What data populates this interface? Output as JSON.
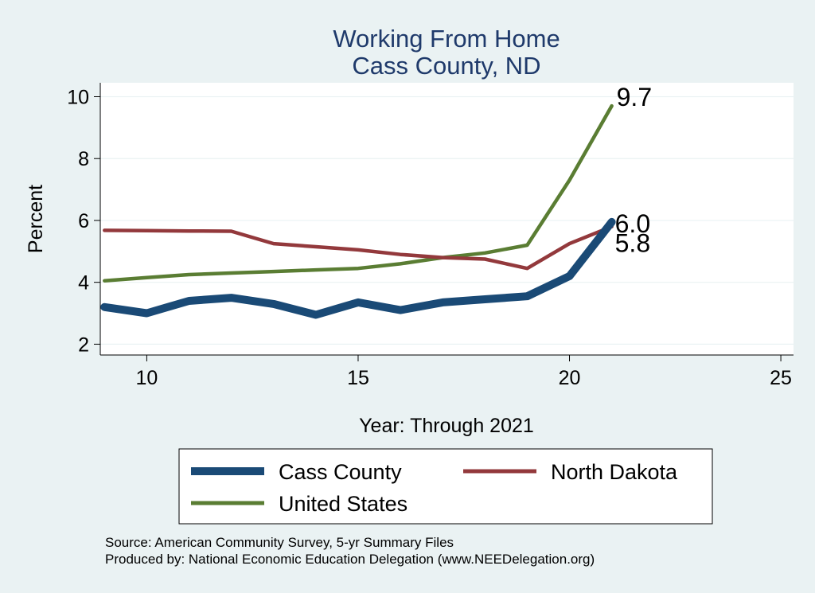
{
  "chart_data": {
    "type": "line",
    "title": "Working From Home",
    "subtitle": "Cass County, ND",
    "xlabel": "Year: Through 2021",
    "ylabel": "Percent",
    "xlim": [
      8.9,
      25.3
    ],
    "ylim": [
      1.65,
      10.45
    ],
    "xticks": [
      10,
      15,
      20,
      25
    ],
    "yticks": [
      2,
      4,
      6,
      8,
      10
    ],
    "grid": true,
    "legend_position": "bottom",
    "series": [
      {
        "name": "Cass County",
        "color": "#1a4a76",
        "x": [
          9,
          10,
          11,
          12,
          13,
          14,
          15,
          16,
          17,
          18,
          19,
          20,
          21
        ],
        "values": [
          3.2,
          3.0,
          3.4,
          3.5,
          3.3,
          2.95,
          3.35,
          3.1,
          3.35,
          3.45,
          3.55,
          4.2,
          5.95
        ]
      },
      {
        "name": "North Dakota",
        "color": "#93393c",
        "x": [
          9,
          10,
          11,
          12,
          13,
          14,
          15,
          16,
          17,
          18,
          19,
          20,
          21
        ],
        "values": [
          5.68,
          5.67,
          5.66,
          5.65,
          5.25,
          5.15,
          5.05,
          4.9,
          4.8,
          4.75,
          4.45,
          5.25,
          5.8
        ]
      },
      {
        "name": "United States",
        "color": "#5a7d33",
        "x": [
          9,
          10,
          11,
          12,
          13,
          14,
          15,
          16,
          17,
          18,
          19,
          20,
          21
        ],
        "values": [
          4.05,
          4.15,
          4.25,
          4.3,
          4.35,
          4.4,
          4.45,
          4.6,
          4.8,
          4.95,
          5.2,
          7.3,
          9.7
        ]
      }
    ],
    "end_labels": [
      {
        "series": "United States",
        "text": "9.7"
      },
      {
        "series": "Cass County",
        "text": "6.0"
      },
      {
        "series": "North Dakota",
        "text": "5.8"
      }
    ],
    "notes": [
      "Source: American Community Survey, 5-yr Summary Files",
      "Produced by: National Economic Education Delegation (www.NEEDelegation.org)"
    ]
  }
}
